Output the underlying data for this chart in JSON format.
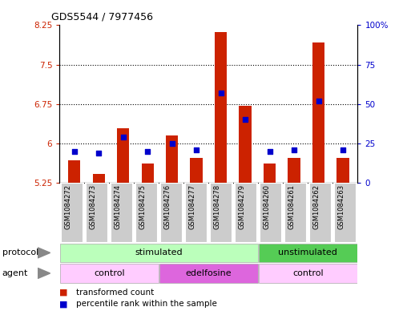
{
  "title": "GDS5544 / 7977456",
  "samples": [
    "GSM1084272",
    "GSM1084273",
    "GSM1084274",
    "GSM1084275",
    "GSM1084276",
    "GSM1084277",
    "GSM1084278",
    "GSM1084279",
    "GSM1084260",
    "GSM1084261",
    "GSM1084262",
    "GSM1084263"
  ],
  "transformed_count": [
    5.68,
    5.42,
    6.28,
    5.62,
    6.15,
    5.73,
    8.12,
    6.72,
    5.62,
    5.73,
    7.92,
    5.73
  ],
  "percentile_rank": [
    20,
    19,
    29,
    20,
    25,
    21,
    57,
    40,
    20,
    21,
    52,
    21
  ],
  "bar_bottom": 5.25,
  "ylim_left": [
    5.25,
    8.25
  ],
  "ylim_right": [
    0,
    100
  ],
  "yticks_left": [
    5.25,
    6.0,
    6.75,
    7.5,
    8.25
  ],
  "yticks_left_labels": [
    "5.25",
    "6",
    "6.75",
    "7.5",
    "8.25"
  ],
  "yticks_right": [
    0,
    25,
    50,
    75,
    100
  ],
  "yticks_right_labels": [
    "0",
    "25",
    "50",
    "75",
    "100%"
  ],
  "bar_color": "#cc2200",
  "dot_color": "#0000cc",
  "protocol_groups": [
    {
      "label": "stimulated",
      "start": 0,
      "end": 7,
      "color": "#bbffbb"
    },
    {
      "label": "unstimulated",
      "start": 8,
      "end": 11,
      "color": "#55cc55"
    }
  ],
  "agent_groups": [
    {
      "label": "control",
      "start": 0,
      "end": 3,
      "color": "#ffccff"
    },
    {
      "label": "edelfosine",
      "start": 4,
      "end": 7,
      "color": "#dd66dd"
    },
    {
      "label": "control",
      "start": 8,
      "end": 11,
      "color": "#ffccff"
    }
  ],
  "legend_bar_label": "transformed count",
  "legend_dot_label": "percentile rank within the sample",
  "left_tick_color": "#cc2200",
  "right_tick_color": "#0000cc",
  "sample_col_color": "#cccccc",
  "sample_col_edge": "#ffffff"
}
